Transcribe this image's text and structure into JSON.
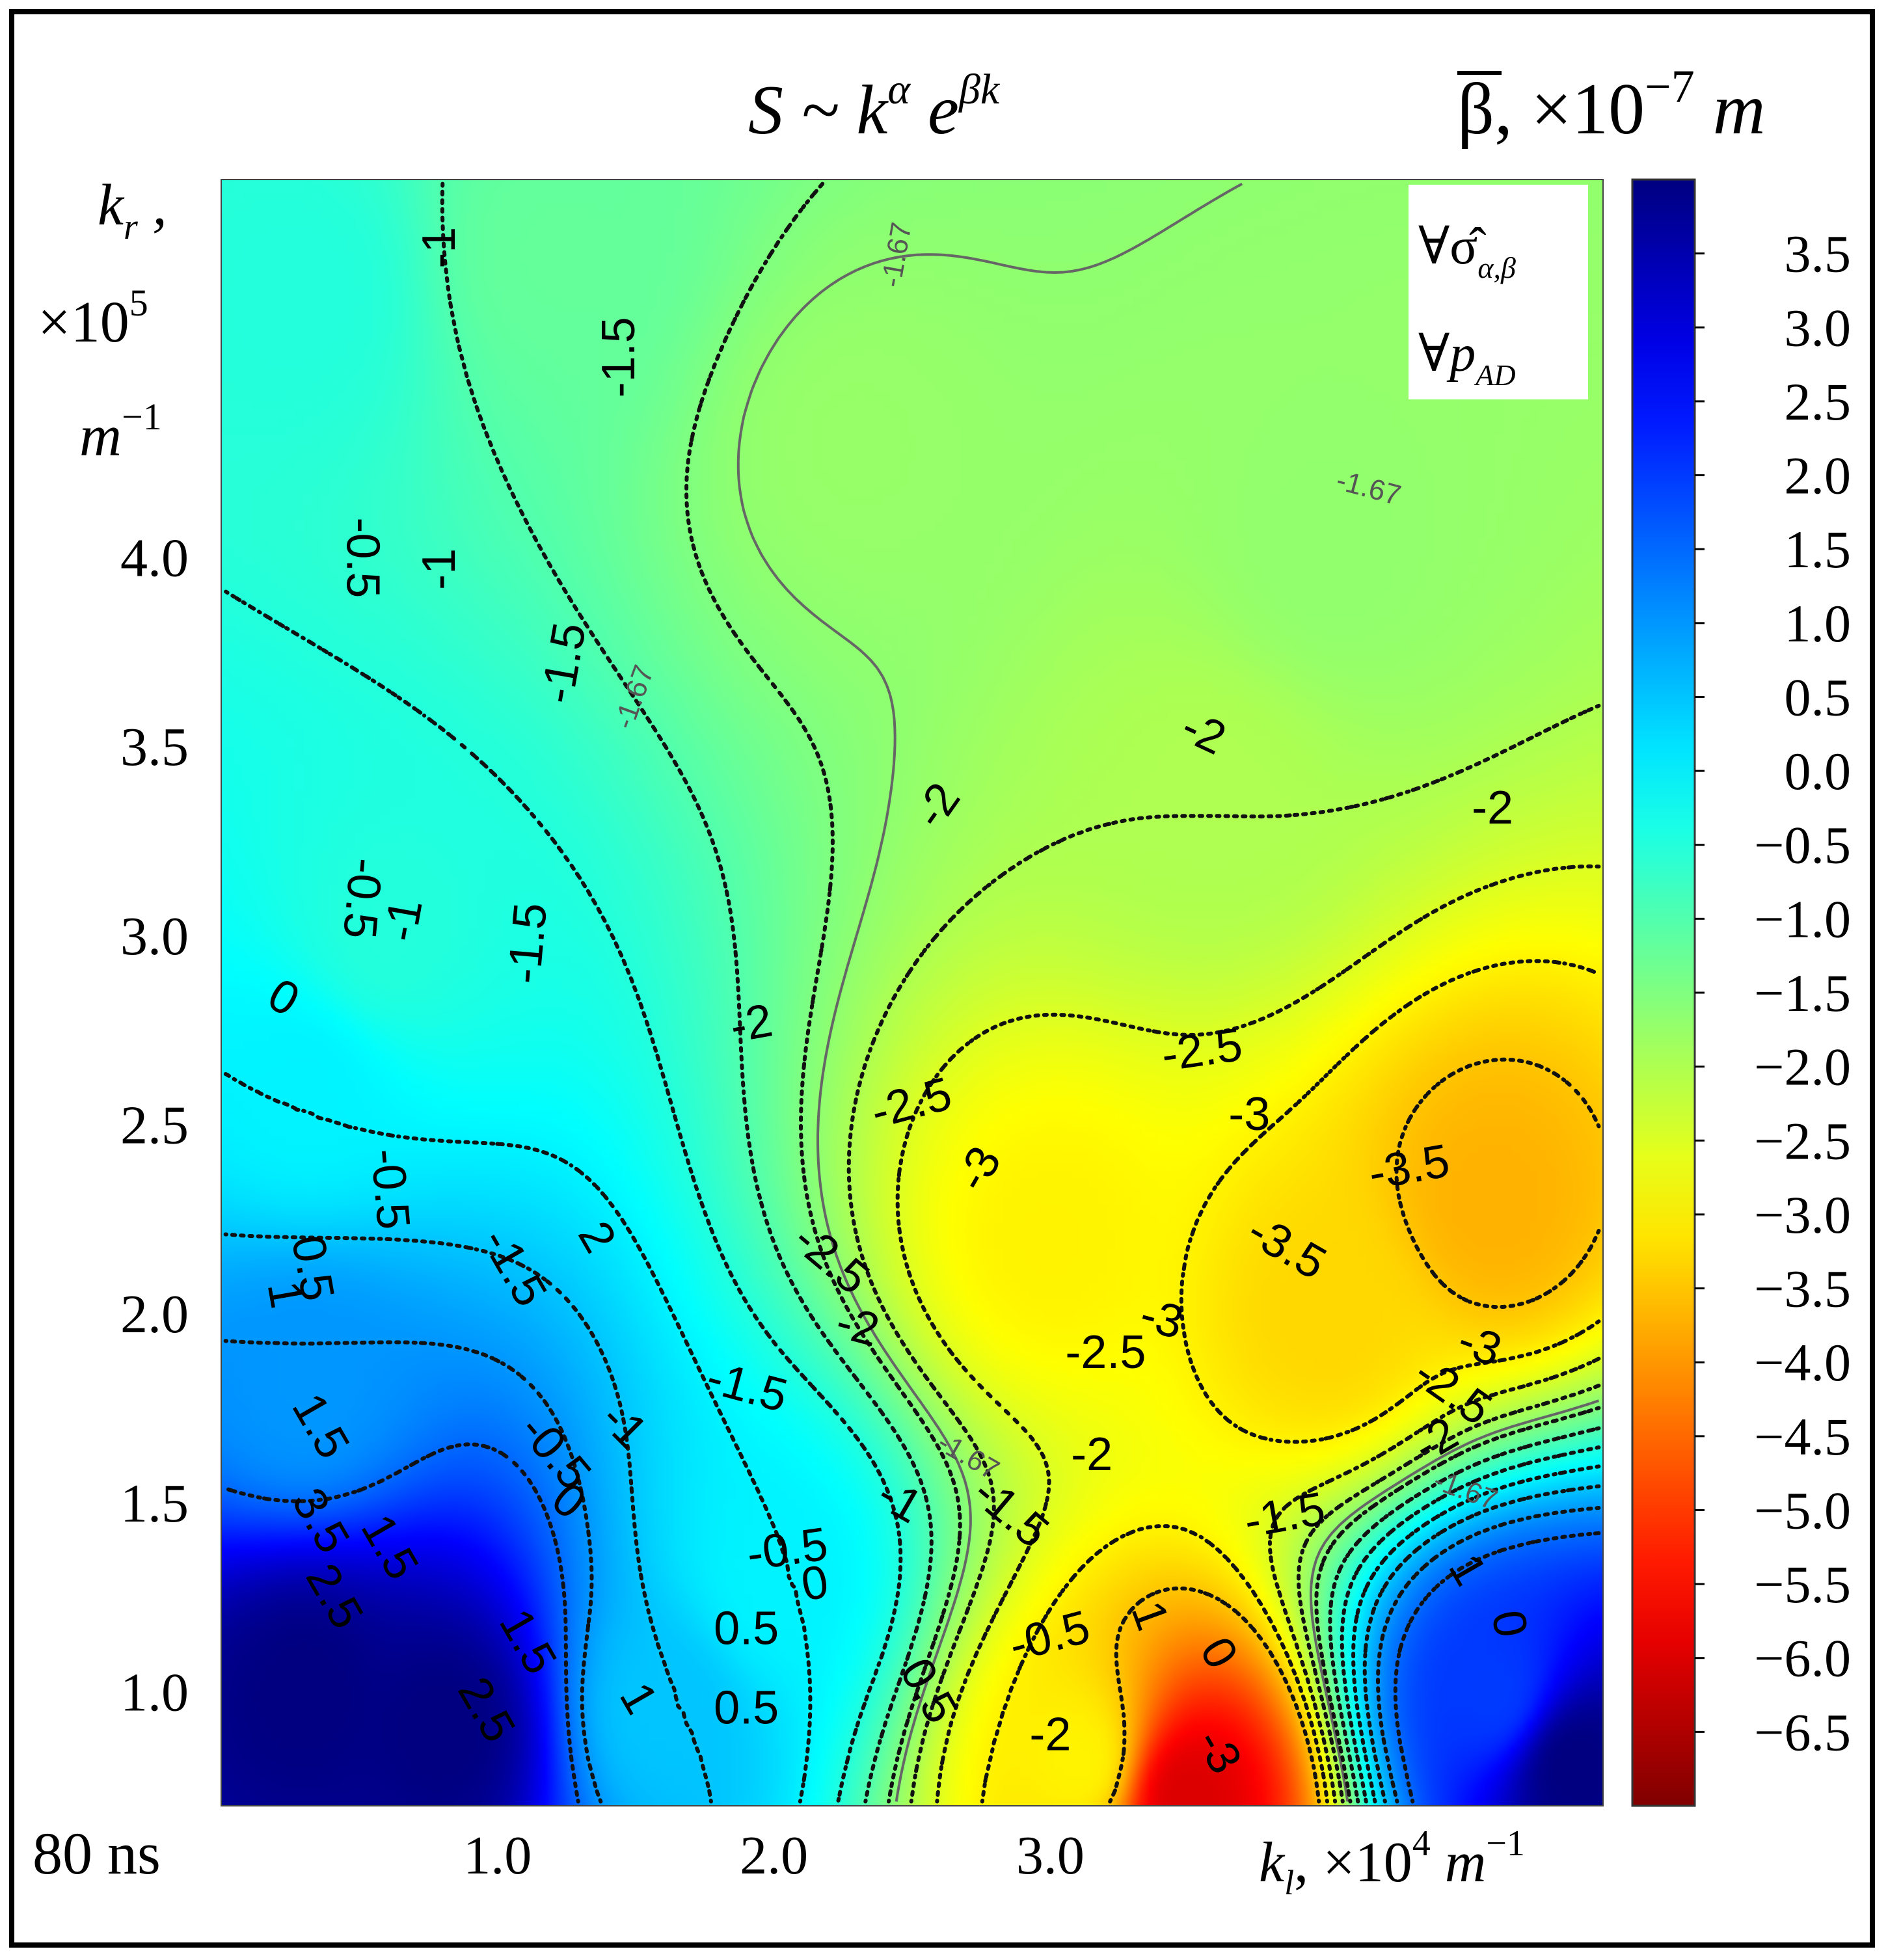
{
  "chart_data": {
    "type": "heatmap",
    "subtype": "filled contour map with labelled isolines",
    "title": "S ~ k^α e^(βk)",
    "title_parts": {
      "base": "S ~ k",
      "sup1": "α",
      "mid": " e",
      "sup2": "βk"
    },
    "corner_label": "80 ns",
    "xlabel": "k_l, ×10^4 m^-1",
    "xlabel_parts": {
      "k": "k",
      "sub": "l",
      "mult": ", ×10",
      "exp": "4",
      "unit": " m",
      "unit_exp": "−1"
    },
    "ylabel": "k_r, ×10^5 m^-1",
    "ylabel_parts": {
      "line1": "k",
      "sub": "r",
      "comma": " ,",
      "line2": "×10",
      "exp": "5",
      "line3": "m",
      "unit_exp": "−1"
    },
    "xlim": [
      0.0,
      5.0
    ],
    "ylim": [
      0.7,
      5.0
    ],
    "x_ticks": [
      1.0,
      2.0,
      3.0
    ],
    "x_tick_labels": [
      "1.0",
      "2.0",
      "3.0"
    ],
    "y_ticks": [
      1.0,
      1.5,
      2.0,
      2.5,
      3.0,
      3.5,
      4.0
    ],
    "y_tick_labels": [
      "1.0",
      "1.5",
      "2.0",
      "2.5",
      "3.0",
      "3.5",
      "4.0"
    ],
    "colorbar": {
      "label": "β̄, ×10^-7 m",
      "label_parts": {
        "sym": "β",
        "mult": ", ×10",
        "exp": "−7",
        "unit": " m"
      },
      "range": [
        -7.0,
        4.0
      ],
      "colormap": "jet_r",
      "ticks": [
        3.5,
        3.0,
        2.5,
        2.0,
        1.5,
        1.0,
        0.5,
        0.0,
        -0.5,
        -1.0,
        -1.5,
        -2.0,
        -2.5,
        -3.0,
        -3.5,
        -4.0,
        -4.5,
        -5.0,
        -5.5,
        -6.0,
        -6.5
      ],
      "tick_labels": [
        "3.5",
        "3.0",
        "2.5",
        "2.0",
        "1.5",
        "1.0",
        "0.5",
        "0.0",
        "−0.5",
        "−1.0",
        "−1.5",
        "−2.0",
        "−2.5",
        "−3.0",
        "−3.5",
        "−4.0",
        "−4.5",
        "−5.0",
        "−5.5",
        "−6.0",
        "−6.5"
      ]
    },
    "legend_box": {
      "placement": "top-right",
      "lines": [
        "∀σ̂",
        "α,β",
        "∀p",
        "AD"
      ]
    },
    "field_samples": [
      {
        "x": 0.3,
        "y": 4.7,
        "z": -0.5
      },
      {
        "x": 0.6,
        "y": 3.0,
        "z": -0.5
      },
      {
        "x": 0.3,
        "y": 2.6,
        "z": 0.0
      },
      {
        "x": 0.3,
        "y": 1.8,
        "z": 1.0
      },
      {
        "x": 0.3,
        "y": 1.0,
        "z": 4.0
      },
      {
        "x": 0.8,
        "y": 0.9,
        "z": 4.0
      },
      {
        "x": 1.2,
        "y": 4.8,
        "z": -1.2
      },
      {
        "x": 2.3,
        "y": 4.3,
        "z": -1.75
      },
      {
        "x": 4.0,
        "y": 4.0,
        "z": -1.7
      },
      {
        "x": 3.6,
        "y": 3.4,
        "z": -2.0
      },
      {
        "x": 3.0,
        "y": 2.2,
        "z": -3.0
      },
      {
        "x": 4.6,
        "y": 2.3,
        "z": -3.7
      },
      {
        "x": 4.0,
        "y": 2.0,
        "z": -3.3
      },
      {
        "x": 2.0,
        "y": 1.3,
        "z": 0.0
      },
      {
        "x": 1.6,
        "y": 0.95,
        "z": 0.5
      },
      {
        "x": 4.6,
        "y": 1.0,
        "z": 2.0
      },
      {
        "x": 4.9,
        "y": 0.8,
        "z": 4.0
      },
      {
        "x": 3.1,
        "y": 0.82,
        "z": -3.0
      },
      {
        "x": 3.5,
        "y": 0.72,
        "z": -6.0
      }
    ],
    "contour_levels": [
      -3.5,
      -3.0,
      -2.5,
      -2.0,
      -1.67,
      -1.5,
      -1.0,
      -0.5,
      0.0,
      0.5,
      1.0,
      1.5
    ],
    "contour_labels": [
      {
        "text": "-1",
        "x": 0.8,
        "y": 4.82,
        "rot": -90
      },
      {
        "text": "-1.5",
        "x": 1.45,
        "y": 4.53,
        "rot": -90
      },
      {
        "text": "-1.67",
        "x": 2.45,
        "y": 4.8,
        "rot": -80,
        "small": true
      },
      {
        "text": "-1.67",
        "x": 4.15,
        "y": 4.18,
        "rot": 15,
        "small": true
      },
      {
        "text": "-0.5",
        "x": 0.5,
        "y": 4.0,
        "rot": 90
      },
      {
        "text": "-1",
        "x": 0.8,
        "y": 3.97,
        "rot": -90
      },
      {
        "text": "-1.5",
        "x": 1.25,
        "y": 3.72,
        "rot": -80
      },
      {
        "text": "-1.67",
        "x": 1.5,
        "y": 3.63,
        "rot": -70,
        "small": true
      },
      {
        "text": "-2",
        "x": 3.55,
        "y": 3.53,
        "rot": 25
      },
      {
        "text": "-2",
        "x": 4.6,
        "y": 3.33,
        "rot": 0
      },
      {
        "text": "-2",
        "x": 2.6,
        "y": 3.34,
        "rot": -55
      },
      {
        "text": "-0.5",
        "x": 0.5,
        "y": 3.1,
        "rot": 95
      },
      {
        "text": "-1",
        "x": 0.67,
        "y": 3.04,
        "rot": -80
      },
      {
        "text": "-1.5",
        "x": 1.12,
        "y": 2.98,
        "rot": -85
      },
      {
        "text": "0",
        "x": 0.22,
        "y": 2.83,
        "rot": 30
      },
      {
        "text": "-2",
        "x": 1.92,
        "y": 2.76,
        "rot": -10
      },
      {
        "text": "-2.5",
        "x": 3.55,
        "y": 2.69,
        "rot": -8
      },
      {
        "text": "-2.5",
        "x": 2.5,
        "y": 2.55,
        "rot": -15
      },
      {
        "text": "-3",
        "x": 3.72,
        "y": 2.52,
        "rot": 0
      },
      {
        "text": "-3",
        "x": 2.75,
        "y": 2.38,
        "rot": -60
      },
      {
        "text": "-3.5",
        "x": 4.3,
        "y": 2.38,
        "rot": -10
      },
      {
        "text": "-3.5",
        "x": 3.85,
        "y": 2.17,
        "rot": 30
      },
      {
        "text": "-2.5",
        "x": 2.2,
        "y": 2.14,
        "rot": 40
      },
      {
        "text": "2",
        "x": 1.35,
        "y": 2.2,
        "rot": 60
      },
      {
        "text": "-1.5",
        "x": 1.05,
        "y": 2.12,
        "rot": 60
      },
      {
        "text": "-0.5",
        "x": 0.6,
        "y": 2.33,
        "rot": 85
      },
      {
        "text": "0.5",
        "x": 0.32,
        "y": 2.12,
        "rot": 80
      },
      {
        "text": "1",
        "x": 0.22,
        "y": 2.05,
        "rot": 80
      },
      {
        "text": "-3",
        "x": 3.4,
        "y": 1.98,
        "rot": 15
      },
      {
        "text": "-2",
        "x": 2.3,
        "y": 1.96,
        "rot": 15
      },
      {
        "text": "-2.5",
        "x": 3.2,
        "y": 1.89,
        "rot": 0
      },
      {
        "text": "-3",
        "x": 4.55,
        "y": 1.91,
        "rot": 20
      },
      {
        "text": "-2.5",
        "x": 4.45,
        "y": 1.79,
        "rot": 35
      },
      {
        "text": "-1.5",
        "x": 1.9,
        "y": 1.8,
        "rot": 15
      },
      {
        "text": "-1",
        "x": 1.45,
        "y": 1.7,
        "rot": 45
      },
      {
        "text": "-0.5",
        "x": 1.2,
        "y": 1.63,
        "rot": 50
      },
      {
        "text": "-2",
        "x": 4.4,
        "y": 1.66,
        "rot": -30
      },
      {
        "text": "-1.67",
        "x": 2.7,
        "y": 1.62,
        "rot": 30,
        "small": true
      },
      {
        "text": "-2",
        "x": 3.15,
        "y": 1.62,
        "rot": 0
      },
      {
        "text": "-1.67",
        "x": 4.5,
        "y": 1.53,
        "rot": 20,
        "small": true
      },
      {
        "text": "0",
        "x": 1.25,
        "y": 1.5,
        "rot": 40
      },
      {
        "text": "-1",
        "x": 2.45,
        "y": 1.5,
        "rot": 30
      },
      {
        "text": "-1.5",
        "x": 2.85,
        "y": 1.47,
        "rot": 40
      },
      {
        "text": "-1.5",
        "x": 3.85,
        "y": 1.46,
        "rot": -10
      },
      {
        "text": "-0.5",
        "x": 2.05,
        "y": 1.37,
        "rot": -8
      },
      {
        "text": "0",
        "x": 2.15,
        "y": 1.28,
        "rot": -10
      },
      {
        "text": "1",
        "x": 4.5,
        "y": 1.32,
        "rot": 60
      },
      {
        "text": "0.5",
        "x": 1.9,
        "y": 1.16,
        "rot": 0
      },
      {
        "text": "-0.5",
        "x": 3.0,
        "y": 1.14,
        "rot": -15
      },
      {
        "text": "1",
        "x": 3.35,
        "y": 1.2,
        "rot": 70
      },
      {
        "text": "1.5",
        "x": 1.1,
        "y": 1.13,
        "rot": 60
      },
      {
        "text": "0.5",
        "x": 1.9,
        "y": 0.95,
        "rot": 0
      },
      {
        "text": "1",
        "x": 1.5,
        "y": 0.98,
        "rot": 60
      },
      {
        "text": "0",
        "x": 3.6,
        "y": 1.1,
        "rot": 60
      },
      {
        "text": "0",
        "x": 4.65,
        "y": 1.18,
        "rot": 80
      },
      {
        "text": "1.5",
        "x": 0.35,
        "y": 1.7,
        "rot": 60
      },
      {
        "text": "1.5",
        "x": 0.6,
        "y": 1.38,
        "rot": 60
      },
      {
        "text": "3.5",
        "x": 0.35,
        "y": 1.45,
        "rot": 60
      },
      {
        "text": "2.5",
        "x": 0.4,
        "y": 1.25,
        "rot": 60
      },
      {
        "text": "2.5",
        "x": 0.95,
        "y": 0.95,
        "rot": 60
      },
      {
        "text": "0.5",
        "x": 2.55,
        "y": 1.0,
        "rot": 60
      },
      {
        "text": "-3",
        "x": 3.6,
        "y": 0.84,
        "rot": 60
      },
      {
        "text": "-2",
        "x": 3.0,
        "y": 0.88,
        "rot": 0
      }
    ]
  }
}
